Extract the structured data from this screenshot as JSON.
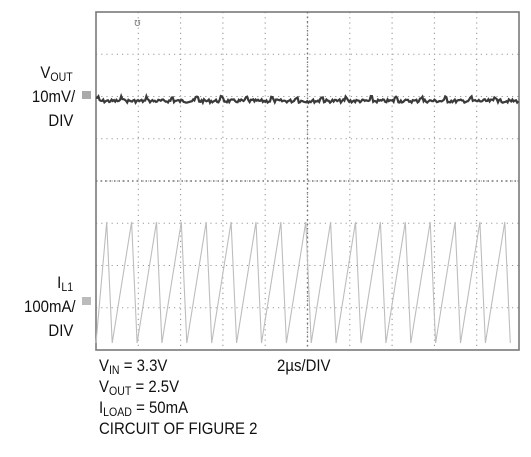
{
  "chart_data": {
    "type": "line",
    "subtype": "oscilloscope-capture",
    "grid": true,
    "divisions": {
      "x": 10,
      "y": 8
    },
    "channels": [
      {
        "name": "V",
        "subscript": "OUT",
        "scale_label": "10mV/",
        "scale_unit": "DIV",
        "ripple_mV_peak_to_peak": 3,
        "waveform": "ripple"
      },
      {
        "name": "I",
        "subscript": "L1",
        "scale_label": "100mA/",
        "scale_unit": "DIV",
        "waveform": "sawtooth",
        "ripple_mA_peak_to_peak": 300,
        "cycles_across_screen": 17
      }
    ],
    "timebase": "2µs/DIV",
    "conditions": [
      {
        "symbol": "V",
        "sub": "IN",
        "rest": " = 3.3V"
      },
      {
        "symbol": "V",
        "sub": "OUT",
        "rest": " = 2.5V"
      },
      {
        "symbol": "I",
        "sub": "LOAD",
        "rest": " = 50mA"
      },
      {
        "symbol": "CIRCUIT OF FIGURE 2",
        "sub": "",
        "rest": ""
      }
    ],
    "colors": {
      "trace": "#3a3a3a",
      "sawtooth": "#bdbdbd",
      "grid": "#9a9a9a",
      "frame": "#7a7a7a"
    }
  }
}
